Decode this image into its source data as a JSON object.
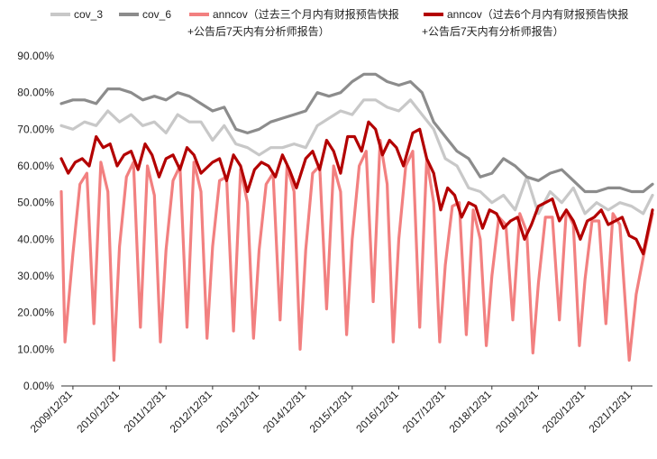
{
  "chart_data": {
    "type": "line",
    "title": "",
    "xlabel": "",
    "ylabel": "",
    "ylim": [
      0,
      0.9
    ],
    "yticks": [
      "0.00%",
      "10.00%",
      "20.00%",
      "30.00%",
      "40.00%",
      "50.00%",
      "60.00%",
      "70.00%",
      "80.00%",
      "90.00%"
    ],
    "x_range": [
      2009.75,
      2022.45
    ],
    "x_tick_labels": [
      "2009/12/31",
      "2010/12/31",
      "2011/12/31",
      "2012/12/31",
      "2013/12/31",
      "2014/12/31",
      "2015/12/31",
      "2016/12/31",
      "2017/12/31",
      "2018/12/31",
      "2019/12/31",
      "2020/12/31",
      "2021/12/31"
    ],
    "grid": false,
    "legend_placement": "top",
    "series": [
      {
        "name": "cov_3",
        "color": "#c8c8c8",
        "points": [
          [
            2009.75,
            0.71
          ],
          [
            2010.0,
            0.7
          ],
          [
            2010.25,
            0.72
          ],
          [
            2010.5,
            0.71
          ],
          [
            2010.75,
            0.75
          ],
          [
            2011.0,
            0.72
          ],
          [
            2011.25,
            0.74
          ],
          [
            2011.5,
            0.71
          ],
          [
            2011.75,
            0.72
          ],
          [
            2012.0,
            0.69
          ],
          [
            2012.25,
            0.74
          ],
          [
            2012.5,
            0.72
          ],
          [
            2012.75,
            0.72
          ],
          [
            2013.0,
            0.67
          ],
          [
            2013.25,
            0.71
          ],
          [
            2013.5,
            0.66
          ],
          [
            2013.75,
            0.65
          ],
          [
            2014.0,
            0.63
          ],
          [
            2014.25,
            0.65
          ],
          [
            2014.5,
            0.65
          ],
          [
            2014.75,
            0.66
          ],
          [
            2015.0,
            0.65
          ],
          [
            2015.25,
            0.71
          ],
          [
            2015.5,
            0.73
          ],
          [
            2015.75,
            0.75
          ],
          [
            2016.0,
            0.74
          ],
          [
            2016.25,
            0.78
          ],
          [
            2016.5,
            0.78
          ],
          [
            2016.75,
            0.76
          ],
          [
            2017.0,
            0.75
          ],
          [
            2017.25,
            0.78
          ],
          [
            2017.5,
            0.74
          ],
          [
            2017.75,
            0.7
          ],
          [
            2018.0,
            0.62
          ],
          [
            2018.25,
            0.6
          ],
          [
            2018.5,
            0.54
          ],
          [
            2018.75,
            0.53
          ],
          [
            2019.0,
            0.5
          ],
          [
            2019.25,
            0.52
          ],
          [
            2019.5,
            0.48
          ],
          [
            2019.75,
            0.57
          ],
          [
            2020.0,
            0.47
          ],
          [
            2020.25,
            0.53
          ],
          [
            2020.5,
            0.5
          ],
          [
            2020.75,
            0.54
          ],
          [
            2021.0,
            0.47
          ],
          [
            2021.25,
            0.5
          ],
          [
            2021.5,
            0.48
          ],
          [
            2021.75,
            0.5
          ],
          [
            2022.0,
            0.49
          ],
          [
            2022.25,
            0.47
          ],
          [
            2022.45,
            0.52
          ]
        ]
      },
      {
        "name": "cov_6",
        "color": "#8c8c8c",
        "points": [
          [
            2009.75,
            0.77
          ],
          [
            2010.0,
            0.78
          ],
          [
            2010.25,
            0.78
          ],
          [
            2010.5,
            0.77
          ],
          [
            2010.75,
            0.81
          ],
          [
            2011.0,
            0.81
          ],
          [
            2011.25,
            0.8
          ],
          [
            2011.5,
            0.78
          ],
          [
            2011.75,
            0.79
          ],
          [
            2012.0,
            0.78
          ],
          [
            2012.25,
            0.8
          ],
          [
            2012.5,
            0.79
          ],
          [
            2012.75,
            0.77
          ],
          [
            2013.0,
            0.75
          ],
          [
            2013.25,
            0.76
          ],
          [
            2013.5,
            0.7
          ],
          [
            2013.75,
            0.69
          ],
          [
            2014.0,
            0.7
          ],
          [
            2014.25,
            0.72
          ],
          [
            2014.5,
            0.73
          ],
          [
            2014.75,
            0.74
          ],
          [
            2015.0,
            0.75
          ],
          [
            2015.25,
            0.8
          ],
          [
            2015.5,
            0.79
          ],
          [
            2015.75,
            0.8
          ],
          [
            2016.0,
            0.83
          ],
          [
            2016.25,
            0.85
          ],
          [
            2016.5,
            0.85
          ],
          [
            2016.75,
            0.83
          ],
          [
            2017.0,
            0.82
          ],
          [
            2017.25,
            0.83
          ],
          [
            2017.5,
            0.8
          ],
          [
            2017.75,
            0.72
          ],
          [
            2018.0,
            0.68
          ],
          [
            2018.25,
            0.64
          ],
          [
            2018.5,
            0.62
          ],
          [
            2018.75,
            0.57
          ],
          [
            2019.0,
            0.58
          ],
          [
            2019.25,
            0.62
          ],
          [
            2019.5,
            0.6
          ],
          [
            2019.75,
            0.57
          ],
          [
            2020.0,
            0.56
          ],
          [
            2020.25,
            0.58
          ],
          [
            2020.5,
            0.59
          ],
          [
            2020.75,
            0.56
          ],
          [
            2021.0,
            0.53
          ],
          [
            2021.25,
            0.53
          ],
          [
            2021.5,
            0.54
          ],
          [
            2021.75,
            0.54
          ],
          [
            2022.0,
            0.53
          ],
          [
            2022.25,
            0.53
          ],
          [
            2022.45,
            0.55
          ]
        ]
      },
      {
        "name": "anncov（过去三个月内有财报预告快报+公告后7天内有分析师报告）",
        "color": "#f28080",
        "points": [
          [
            2009.75,
            0.53
          ],
          [
            2009.83,
            0.12
          ],
          [
            2010.0,
            0.36
          ],
          [
            2010.15,
            0.55
          ],
          [
            2010.3,
            0.58
          ],
          [
            2010.45,
            0.17
          ],
          [
            2010.6,
            0.61
          ],
          [
            2010.75,
            0.53
          ],
          [
            2010.88,
            0.07
          ],
          [
            2011.0,
            0.38
          ],
          [
            2011.15,
            0.57
          ],
          [
            2011.3,
            0.61
          ],
          [
            2011.45,
            0.16
          ],
          [
            2011.6,
            0.6
          ],
          [
            2011.75,
            0.52
          ],
          [
            2011.88,
            0.12
          ],
          [
            2012.0,
            0.37
          ],
          [
            2012.15,
            0.56
          ],
          [
            2012.3,
            0.6
          ],
          [
            2012.45,
            0.16
          ],
          [
            2012.6,
            0.61
          ],
          [
            2012.75,
            0.53
          ],
          [
            2012.88,
            0.13
          ],
          [
            2013.0,
            0.38
          ],
          [
            2013.15,
            0.56
          ],
          [
            2013.3,
            0.57
          ],
          [
            2013.45,
            0.15
          ],
          [
            2013.6,
            0.59
          ],
          [
            2013.75,
            0.5
          ],
          [
            2013.88,
            0.13
          ],
          [
            2014.0,
            0.37
          ],
          [
            2014.15,
            0.55
          ],
          [
            2014.3,
            0.58
          ],
          [
            2014.45,
            0.18
          ],
          [
            2014.6,
            0.6
          ],
          [
            2014.75,
            0.53
          ],
          [
            2014.88,
            0.1
          ],
          [
            2015.0,
            0.37
          ],
          [
            2015.15,
            0.58
          ],
          [
            2015.3,
            0.6
          ],
          [
            2015.45,
            0.21
          ],
          [
            2015.6,
            0.6
          ],
          [
            2015.75,
            0.53
          ],
          [
            2015.88,
            0.14
          ],
          [
            2016.0,
            0.4
          ],
          [
            2016.15,
            0.6
          ],
          [
            2016.3,
            0.64
          ],
          [
            2016.45,
            0.23
          ],
          [
            2016.6,
            0.67
          ],
          [
            2016.75,
            0.55
          ],
          [
            2016.88,
            0.12
          ],
          [
            2017.0,
            0.4
          ],
          [
            2017.15,
            0.6
          ],
          [
            2017.3,
            0.64
          ],
          [
            2017.45,
            0.16
          ],
          [
            2017.6,
            0.62
          ],
          [
            2017.75,
            0.5
          ],
          [
            2017.88,
            0.12
          ],
          [
            2018.0,
            0.33
          ],
          [
            2018.15,
            0.49
          ],
          [
            2018.3,
            0.5
          ],
          [
            2018.45,
            0.14
          ],
          [
            2018.6,
            0.48
          ],
          [
            2018.75,
            0.4
          ],
          [
            2018.88,
            0.11
          ],
          [
            2019.0,
            0.3
          ],
          [
            2019.15,
            0.46
          ],
          [
            2019.3,
            0.44
          ],
          [
            2019.45,
            0.18
          ],
          [
            2019.6,
            0.47
          ],
          [
            2019.75,
            0.42
          ],
          [
            2019.88,
            0.09
          ],
          [
            2020.0,
            0.28
          ],
          [
            2020.15,
            0.46
          ],
          [
            2020.3,
            0.46
          ],
          [
            2020.45,
            0.18
          ],
          [
            2020.6,
            0.48
          ],
          [
            2020.75,
            0.44
          ],
          [
            2020.88,
            0.11
          ],
          [
            2021.0,
            0.29
          ],
          [
            2021.15,
            0.45
          ],
          [
            2021.3,
            0.45
          ],
          [
            2021.45,
            0.17
          ],
          [
            2021.6,
            0.47
          ],
          [
            2021.75,
            0.44
          ],
          [
            2021.95,
            0.07
          ],
          [
            2022.1,
            0.25
          ],
          [
            2022.25,
            0.35
          ],
          [
            2022.45,
            0.47
          ]
        ]
      },
      {
        "name": "anncov（过去6个月内有财报预告快报+公告后7天内有分析师报告）",
        "color": "#b30000",
        "points": [
          [
            2009.75,
            0.62
          ],
          [
            2009.9,
            0.58
          ],
          [
            2010.05,
            0.61
          ],
          [
            2010.2,
            0.62
          ],
          [
            2010.35,
            0.6
          ],
          [
            2010.5,
            0.68
          ],
          [
            2010.65,
            0.65
          ],
          [
            2010.8,
            0.66
          ],
          [
            2010.95,
            0.6
          ],
          [
            2011.1,
            0.63
          ],
          [
            2011.25,
            0.64
          ],
          [
            2011.4,
            0.59
          ],
          [
            2011.55,
            0.66
          ],
          [
            2011.7,
            0.63
          ],
          [
            2011.85,
            0.57
          ],
          [
            2012.0,
            0.62
          ],
          [
            2012.15,
            0.63
          ],
          [
            2012.3,
            0.59
          ],
          [
            2012.45,
            0.65
          ],
          [
            2012.6,
            0.63
          ],
          [
            2012.75,
            0.58
          ],
          [
            2013.0,
            0.61
          ],
          [
            2013.15,
            0.62
          ],
          [
            2013.3,
            0.56
          ],
          [
            2013.45,
            0.63
          ],
          [
            2013.6,
            0.6
          ],
          [
            2013.75,
            0.53
          ],
          [
            2013.9,
            0.59
          ],
          [
            2014.05,
            0.61
          ],
          [
            2014.2,
            0.6
          ],
          [
            2014.35,
            0.57
          ],
          [
            2014.5,
            0.63
          ],
          [
            2014.65,
            0.59
          ],
          [
            2014.8,
            0.54
          ],
          [
            2015.0,
            0.62
          ],
          [
            2015.15,
            0.64
          ],
          [
            2015.3,
            0.59
          ],
          [
            2015.45,
            0.67
          ],
          [
            2015.6,
            0.64
          ],
          [
            2015.75,
            0.58
          ],
          [
            2015.9,
            0.68
          ],
          [
            2016.05,
            0.68
          ],
          [
            2016.2,
            0.64
          ],
          [
            2016.35,
            0.72
          ],
          [
            2016.5,
            0.7
          ],
          [
            2016.65,
            0.63
          ],
          [
            2016.8,
            0.67
          ],
          [
            2016.95,
            0.65
          ],
          [
            2017.1,
            0.6
          ],
          [
            2017.3,
            0.69
          ],
          [
            2017.45,
            0.7
          ],
          [
            2017.6,
            0.62
          ],
          [
            2017.75,
            0.58
          ],
          [
            2017.9,
            0.48
          ],
          [
            2018.05,
            0.54
          ],
          [
            2018.2,
            0.52
          ],
          [
            2018.35,
            0.46
          ],
          [
            2018.5,
            0.5
          ],
          [
            2018.65,
            0.49
          ],
          [
            2018.8,
            0.43
          ],
          [
            2018.95,
            0.48
          ],
          [
            2019.1,
            0.47
          ],
          [
            2019.25,
            0.43
          ],
          [
            2019.4,
            0.45
          ],
          [
            2019.55,
            0.46
          ],
          [
            2019.7,
            0.4
          ],
          [
            2019.85,
            0.44
          ],
          [
            2020.0,
            0.49
          ],
          [
            2020.15,
            0.5
          ],
          [
            2020.3,
            0.51
          ],
          [
            2020.45,
            0.45
          ],
          [
            2020.6,
            0.48
          ],
          [
            2020.75,
            0.45
          ],
          [
            2020.9,
            0.4
          ],
          [
            2021.05,
            0.45
          ],
          [
            2021.2,
            0.46
          ],
          [
            2021.35,
            0.48
          ],
          [
            2021.5,
            0.44
          ],
          [
            2021.65,
            0.45
          ],
          [
            2021.8,
            0.46
          ],
          [
            2021.95,
            0.41
          ],
          [
            2022.1,
            0.4
          ],
          [
            2022.25,
            0.36
          ],
          [
            2022.35,
            0.42
          ],
          [
            2022.45,
            0.48
          ]
        ]
      }
    ]
  }
}
